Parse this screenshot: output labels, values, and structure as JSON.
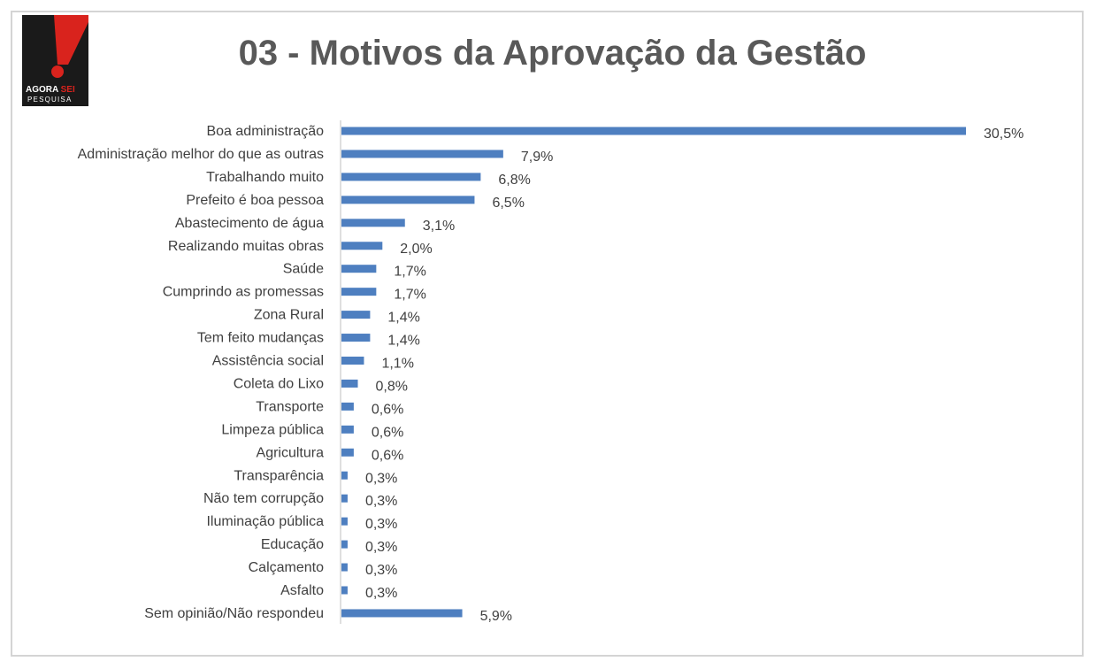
{
  "logo": {
    "text_main": "AGORA",
    "text_accent": "SEI",
    "text_sub": "PESQUISA",
    "colors": {
      "black": "#1a1a1a",
      "red": "#d9231d",
      "white": "#ffffff"
    }
  },
  "chart_data": {
    "type": "bar",
    "orientation": "horizontal",
    "title": "03 - Motivos da Aprovação da Gestão",
    "xlabel": "",
    "ylabel": "",
    "xlim": [
      0,
      30.5
    ],
    "grid": false,
    "legend": "none",
    "bar_color": "#4e7fc0",
    "categories": [
      "Boa administração",
      "Administração melhor do que as outras",
      "Trabalhando muito",
      "Prefeito é boa pessoa",
      "Abastecimento de água",
      "Realizando muitas obras",
      "Saúde",
      "Cumprindo as promessas",
      "Zona Rural",
      "Tem feito mudanças",
      "Assistência social",
      "Coleta do Lixo",
      "Transporte",
      "Limpeza pública",
      "Agricultura",
      "Transparência",
      "Não tem corrupção",
      "Iluminação pública",
      "Educação",
      "Calçamento",
      "Asfalto",
      "Sem opinião/Não respondeu"
    ],
    "values": [
      30.5,
      7.9,
      6.8,
      6.5,
      3.1,
      2.0,
      1.7,
      1.7,
      1.4,
      1.4,
      1.1,
      0.8,
      0.6,
      0.6,
      0.6,
      0.3,
      0.3,
      0.3,
      0.3,
      0.3,
      0.3,
      5.9
    ],
    "value_labels": [
      "30,5%",
      "7,9%",
      "6,8%",
      "6,5%",
      "3,1%",
      "2,0%",
      "1,7%",
      "1,7%",
      "1,4%",
      "1,4%",
      "1,1%",
      "0,8%",
      "0,6%",
      "0,6%",
      "0,6%",
      "0,3%",
      "0,3%",
      "0,3%",
      "0,3%",
      "0,3%",
      "0,3%",
      "5,9%"
    ]
  }
}
